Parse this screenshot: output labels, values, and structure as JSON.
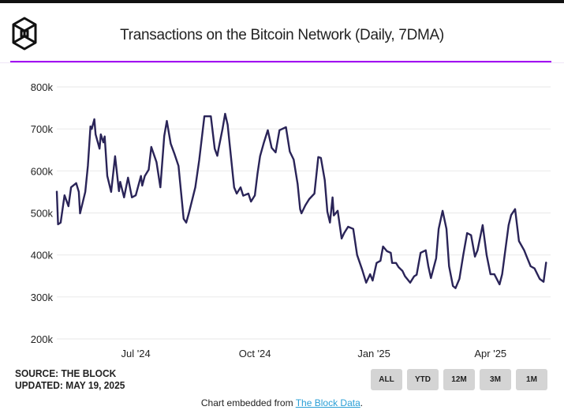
{
  "header": {
    "title": "Transactions on the Bitcoin Network (Daily, 7DMA)",
    "logo": "The Block cube logo"
  },
  "footer": {
    "source": "SOURCE: THE BLOCK",
    "updated": "UPDATED: MAY 19, 2025",
    "buttons": [
      "ALL",
      "YTD",
      "12M",
      "3M",
      "1M"
    ],
    "embed_prefix": "Chart embedded from ",
    "embed_link": "The Block Data",
    "embed_suffix": "."
  },
  "colors": {
    "line": "#2a2458",
    "accent": "#a100f2",
    "grid": "#ececec",
    "button": "#d4d4d4",
    "link": "#2a9fd6"
  },
  "chart_data": {
    "type": "line",
    "title": "Transactions on the Bitcoin Network (Daily, 7DMA)",
    "xlabel": "",
    "ylabel": "",
    "x_unit": "days since 2024-05-01",
    "x_range": [
      0,
      379
    ],
    "ylim": [
      200,
      800
    ],
    "y_unit": "thousands",
    "yticks": [
      {
        "v": 200,
        "label": "200k"
      },
      {
        "v": 300,
        "label": "300k"
      },
      {
        "v": 400,
        "label": "400k"
      },
      {
        "v": 500,
        "label": "500k"
      },
      {
        "v": 600,
        "label": "600k"
      },
      {
        "v": 700,
        "label": "700k"
      },
      {
        "v": 800,
        "label": "800k"
      }
    ],
    "xticks": [
      {
        "d": 61,
        "label": "Jul '24"
      },
      {
        "d": 153,
        "label": "Oct '24"
      },
      {
        "d": 245,
        "label": "Jan '25"
      },
      {
        "d": 335,
        "label": "Apr '25"
      }
    ],
    "grid": true,
    "legend": "none",
    "series": [
      {
        "name": "Transactions (7DMA)",
        "points": [
          [
            0,
            552
          ],
          [
            1,
            473
          ],
          [
            3,
            477
          ],
          [
            6,
            542
          ],
          [
            9,
            516
          ],
          [
            11,
            561
          ],
          [
            15,
            571
          ],
          [
            17,
            550
          ],
          [
            18,
            499
          ],
          [
            22,
            550
          ],
          [
            24,
            612
          ],
          [
            26,
            706
          ],
          [
            27,
            700
          ],
          [
            29,
            723
          ],
          [
            30,
            687
          ],
          [
            33,
            653
          ],
          [
            34,
            687
          ],
          [
            36,
            668
          ],
          [
            37,
            682
          ],
          [
            39,
            588
          ],
          [
            42,
            550
          ],
          [
            45,
            635
          ],
          [
            48,
            552
          ],
          [
            49,
            574
          ],
          [
            52,
            537
          ],
          [
            55,
            584
          ],
          [
            58,
            537
          ],
          [
            61,
            542
          ],
          [
            65,
            588
          ],
          [
            66,
            565
          ],
          [
            68,
            588
          ],
          [
            71,
            603
          ],
          [
            73,
            657
          ],
          [
            77,
            621
          ],
          [
            80,
            561
          ],
          [
            83,
            683
          ],
          [
            85,
            719
          ],
          [
            88,
            665
          ],
          [
            91,
            640
          ],
          [
            94,
            612
          ],
          [
            98,
            486
          ],
          [
            100,
            477
          ],
          [
            102,
            499
          ],
          [
            107,
            561
          ],
          [
            110,
            625
          ],
          [
            114,
            730
          ],
          [
            119,
            730
          ],
          [
            122,
            653
          ],
          [
            124,
            636
          ],
          [
            125,
            653
          ],
          [
            128,
            700
          ],
          [
            130,
            736
          ],
          [
            132,
            710
          ],
          [
            137,
            561
          ],
          [
            139,
            546
          ],
          [
            142,
            561
          ],
          [
            144,
            541
          ],
          [
            148,
            546
          ],
          [
            150,
            527
          ],
          [
            153,
            542
          ],
          [
            155,
            593
          ],
          [
            157,
            635
          ],
          [
            160,
            668
          ],
          [
            163,
            697
          ],
          [
            166,
            655
          ],
          [
            169,
            644
          ],
          [
            172,
            697
          ],
          [
            177,
            704
          ],
          [
            180,
            646
          ],
          [
            183,
            627
          ],
          [
            186,
            569
          ],
          [
            188,
            509
          ],
          [
            189,
            499
          ],
          [
            192,
            518
          ],
          [
            195,
            533
          ],
          [
            199,
            546
          ],
          [
            202,
            633
          ],
          [
            204,
            631
          ],
          [
            207,
            578
          ],
          [
            209,
            503
          ],
          [
            211,
            477
          ],
          [
            213,
            537
          ],
          [
            214,
            494
          ],
          [
            217,
            505
          ],
          [
            220,
            439
          ],
          [
            222,
            452
          ],
          [
            225,
            467
          ],
          [
            229,
            462
          ],
          [
            232,
            400
          ],
          [
            236,
            364
          ],
          [
            239,
            334
          ],
          [
            242,
            354
          ],
          [
            244,
            339
          ],
          [
            247,
            381
          ],
          [
            250,
            386
          ],
          [
            252,
            420
          ],
          [
            255,
            409
          ],
          [
            258,
            405
          ],
          [
            259,
            381
          ],
          [
            262,
            381
          ],
          [
            264,
            371
          ],
          [
            267,
            362
          ],
          [
            269,
            349
          ],
          [
            273,
            334
          ],
          [
            276,
            349
          ],
          [
            278,
            353
          ],
          [
            281,
            405
          ],
          [
            285,
            411
          ],
          [
            287,
            373
          ],
          [
            289,
            345
          ],
          [
            293,
            392
          ],
          [
            295,
            462
          ],
          [
            298,
            505
          ],
          [
            301,
            462
          ],
          [
            303,
            373
          ],
          [
            306,
            326
          ],
          [
            308,
            321
          ],
          [
            311,
            343
          ],
          [
            314,
            400
          ],
          [
            317,
            452
          ],
          [
            320,
            447
          ],
          [
            323,
            396
          ],
          [
            325,
            411
          ],
          [
            329,
            471
          ],
          [
            332,
            400
          ],
          [
            335,
            354
          ],
          [
            338,
            354
          ],
          [
            342,
            330
          ],
          [
            344,
            354
          ],
          [
            346,
            400
          ],
          [
            349,
            471
          ],
          [
            351,
            495
          ],
          [
            354,
            509
          ],
          [
            357,
            433
          ],
          [
            361,
            411
          ],
          [
            363,
            396
          ],
          [
            366,
            373
          ],
          [
            369,
            368
          ],
          [
            373,
            343
          ],
          [
            376,
            336
          ],
          [
            378,
            383
          ]
        ]
      }
    ]
  }
}
